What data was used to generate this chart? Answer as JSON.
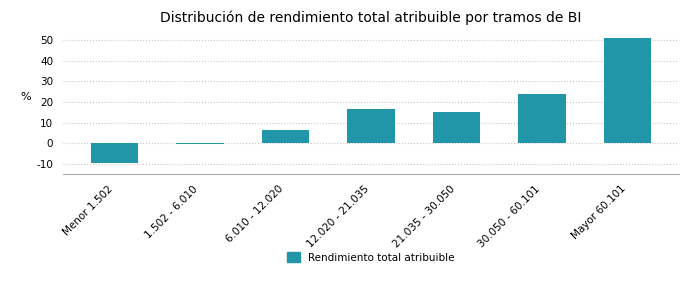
{
  "title": "Distribución de rendimiento total atribuible por tramos de BI",
  "categories": [
    "Menor 1.502",
    "1.502 - 6.010",
    "6.010 - 12.020",
    "12.020 - 21.035",
    "21.035 - 30.050",
    "30.050 - 60.101",
    "Mayor 60.101"
  ],
  "values": [
    -9.5,
    -0.3,
    6.5,
    16.5,
    15.0,
    24.0,
    51.0
  ],
  "bar_color": "#2196a8",
  "ylabel": "%",
  "ylim": [
    -15,
    55
  ],
  "yticks": [
    -10,
    0,
    10,
    20,
    30,
    40,
    50
  ],
  "legend_label": "Rendimiento total atribuible",
  "background_color": "#ffffff",
  "grid_color": "#c8c8c8",
  "title_fontsize": 10,
  "label_fontsize": 8,
  "tick_fontsize": 7.5
}
